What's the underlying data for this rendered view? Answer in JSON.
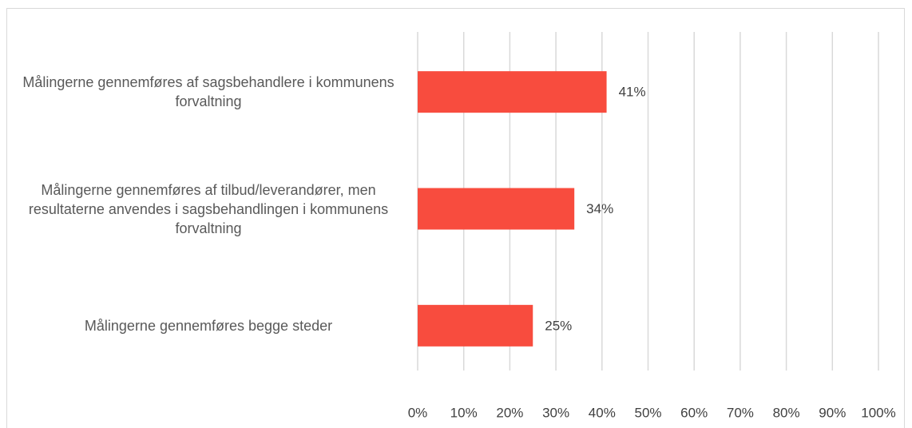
{
  "chart_data": {
    "type": "bar",
    "orientation": "horizontal",
    "categories": [
      "Målingerne gennemføres af sagsbehandlere i kommunens forvaltning",
      "Målingerne gennemføres af tilbud/leverandører, men resultaterne anvendes i sagsbehandlingen i kommunens forvaltning",
      "Målingerne gennemføres begge steder"
    ],
    "values": [
      41,
      34,
      25
    ],
    "value_labels": [
      "41%",
      "34%",
      "25%"
    ],
    "color": "#f84c3e",
    "xlim": [
      0,
      100
    ],
    "xticks": [
      {
        "value": 0,
        "label": "0%"
      },
      {
        "value": 10,
        "label": "10%"
      },
      {
        "value": 20,
        "label": "20%"
      },
      {
        "value": 30,
        "label": "30%"
      },
      {
        "value": 40,
        "label": "40%"
      },
      {
        "value": 50,
        "label": "50%"
      },
      {
        "value": 60,
        "label": "60%"
      },
      {
        "value": 70,
        "label": "70%"
      },
      {
        "value": 80,
        "label": "80%"
      },
      {
        "value": 90,
        "label": "90%"
      },
      {
        "value": 100,
        "label": "100%"
      }
    ],
    "grid": true
  }
}
